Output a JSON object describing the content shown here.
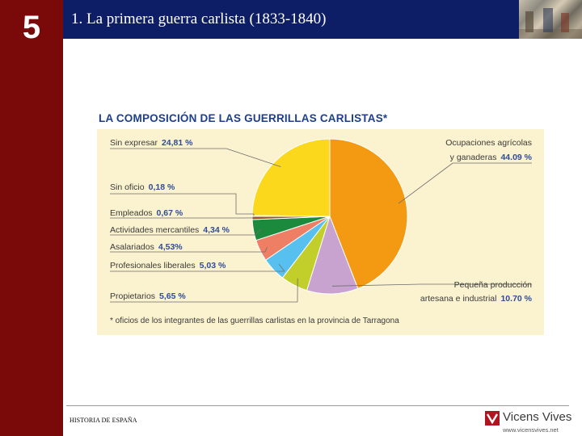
{
  "chapter_number": "5",
  "slide_title": "1. La primera guerra carlista (1833-1840)",
  "footer_text": "HISTORIA DE ESPAÑA",
  "logo": {
    "name": "Vicens Vives",
    "url": "www.vicensvives.net"
  },
  "colors": {
    "sidebar": "#7a0a0a",
    "header": "#0e1e66",
    "chart_title": "#1d3f8b",
    "panel": "#fbf2cf"
  },
  "chart_data": {
    "type": "pie",
    "title": "LA COMPOSICIÓN DE LAS GUERRILLAS CARLISTAS*",
    "footnote": "* oficios de los integrantes de las guerrillas carlistas en la provincia de Tarragona",
    "slices": [
      {
        "label": "Ocupaciones agrícolas y ganaderas",
        "label_lines": [
          "Ocupaciones agrícolas",
          "y ganaderas"
        ],
        "value_text": "44.09 %",
        "value": 44.09,
        "color": "#f39a12",
        "side": "right"
      },
      {
        "label": "Pequeña producción artesana e industrial",
        "label_lines": [
          "Pequeña producción",
          "artesana e industrial"
        ],
        "value_text": "10.70 %",
        "value": 10.7,
        "color": "#c8a3cf",
        "side": "right"
      },
      {
        "label": "Propietarios",
        "label_lines": [
          "Propietarios"
        ],
        "value_text": "5,65 %",
        "value": 5.65,
        "color": "#c2cf2a",
        "side": "left"
      },
      {
        "label": "Profesionales liberales",
        "label_lines": [
          "Profesionales liberales"
        ],
        "value_text": "5,03 %",
        "value": 5.03,
        "color": "#58c0ef",
        "side": "left"
      },
      {
        "label": "Asalariados",
        "label_lines": [
          "Asalariados"
        ],
        "value_text": "4,53%",
        "value": 4.53,
        "color": "#ef7f64",
        "side": "left"
      },
      {
        "label": "Actividades mercantiles",
        "label_lines": [
          "Actividades mercantiles"
        ],
        "value_text": "4,34 %",
        "value": 4.34,
        "color": "#1b8a3c",
        "side": "left"
      },
      {
        "label": "Empleados",
        "label_lines": [
          "Empleados"
        ],
        "value_text": "0,67 %",
        "value": 0.67,
        "color": "#a0522d",
        "side": "left"
      },
      {
        "label": "Sin oficio",
        "label_lines": [
          "Sin oficio"
        ],
        "value_text": "0,18 %",
        "value": 0.18,
        "color": "#7a5c3a",
        "side": "left"
      },
      {
        "label": "Sin expresar",
        "label_lines": [
          "Sin expresar"
        ],
        "value_text": "24,81 %",
        "value": 24.81,
        "color": "#fbd81c",
        "side": "left"
      }
    ]
  }
}
